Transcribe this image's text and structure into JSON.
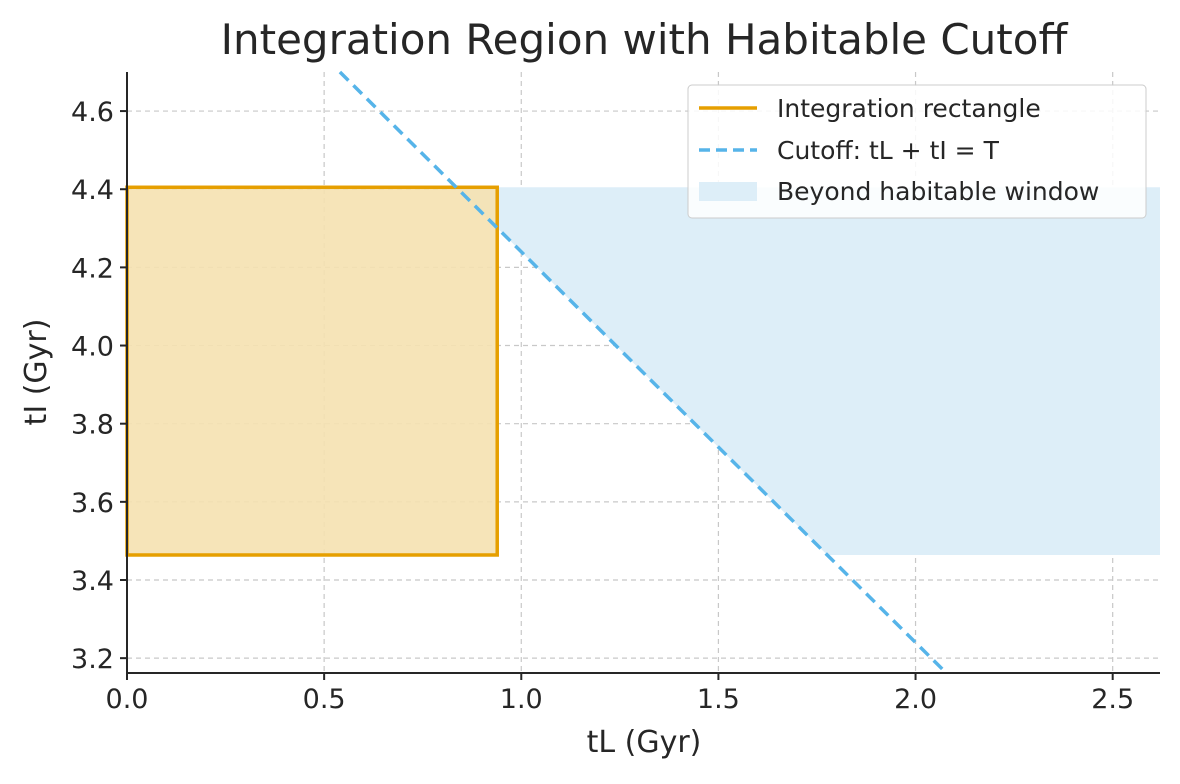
{
  "chart_data": {
    "type": "line",
    "title": "Integration Region with Habitable Cutoff",
    "xlabel": "tL (Gyr)",
    "ylabel": "tI (Gyr)",
    "xlim": [
      0,
      2.62
    ],
    "ylim": [
      3.162,
      4.7
    ],
    "xticks": [
      0.0,
      0.5,
      1.0,
      1.5,
      2.0,
      2.5
    ],
    "xtick_labels": [
      "0.0",
      "0.5",
      "1.0",
      "1.5",
      "2.0",
      "2.5"
    ],
    "yticks": [
      3.2,
      3.4,
      3.6,
      3.8,
      4.0,
      4.2,
      4.4,
      4.6
    ],
    "ytick_labels": [
      "3.2",
      "3.4",
      "3.6",
      "3.8",
      "4.0",
      "4.2",
      "4.4",
      "4.6"
    ],
    "grid": true,
    "legend_position": "top-right",
    "T": 5.24,
    "rectangle": {
      "tL": [
        0,
        0.939
      ],
      "tI": [
        3.464,
        4.405
      ]
    },
    "series": [
      {
        "name": "Integration rectangle",
        "style": "solid",
        "color": "#E69F00",
        "fill": "#F5E1B0"
      },
      {
        "name": "Cutoff: tL + tI = T",
        "style": "dashed",
        "color": "#56B4E9"
      },
      {
        "name": "Beyond habitable window",
        "style": "area",
        "color": "#DDEEF8"
      }
    ]
  }
}
